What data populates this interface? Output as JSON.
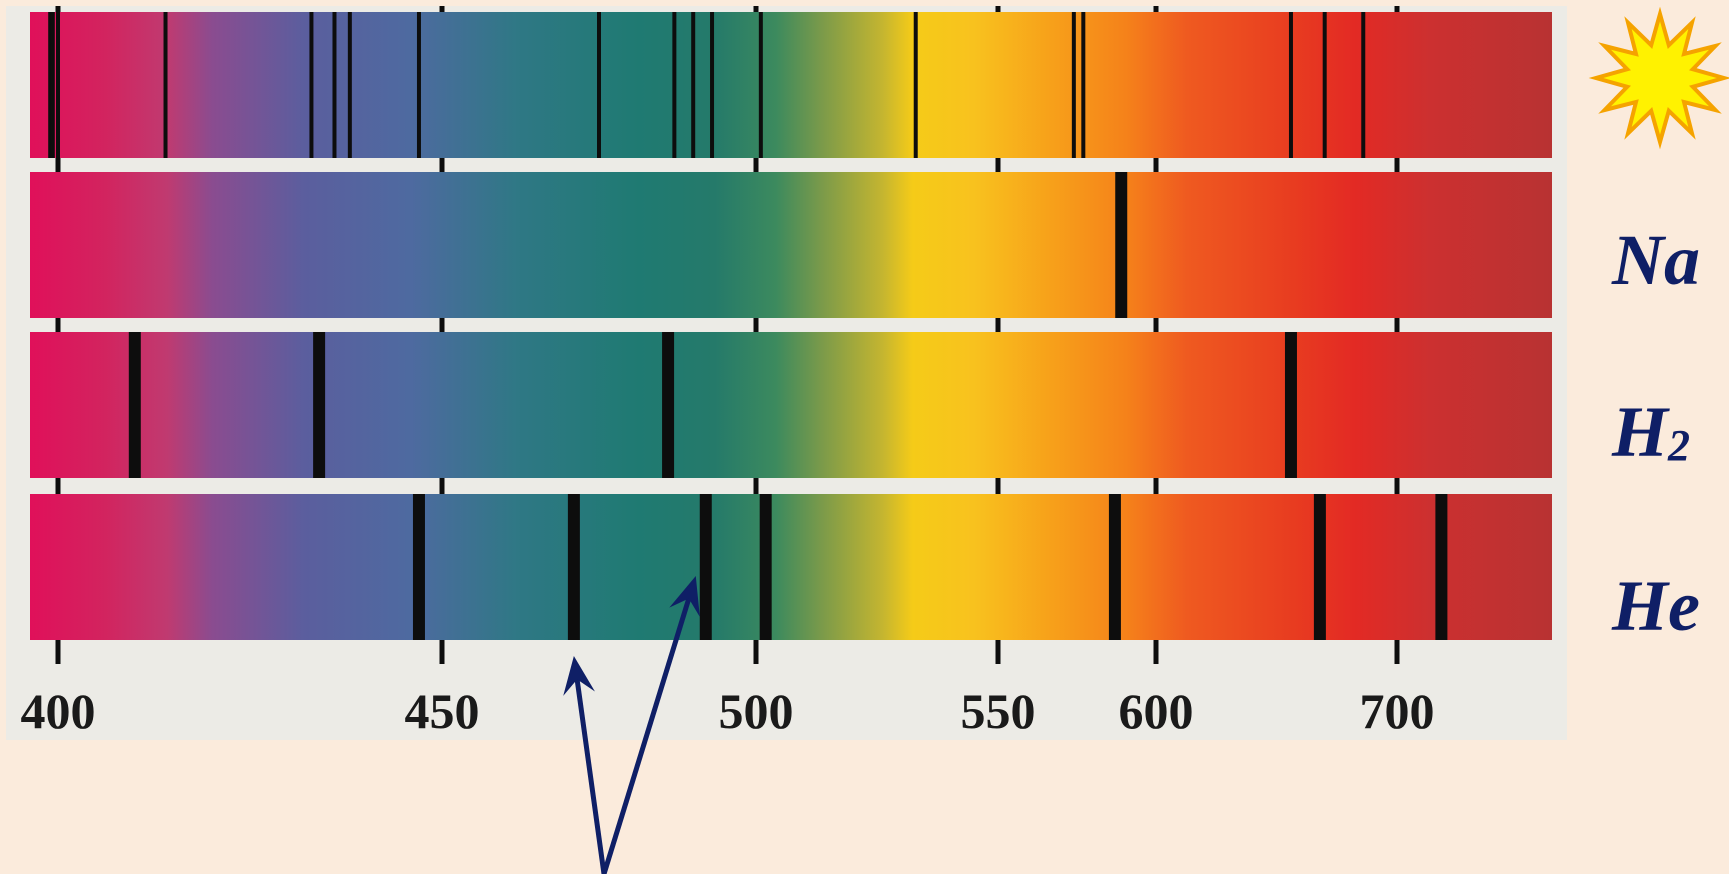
{
  "colors": {
    "background": "#fbebdc",
    "panel": "#ecebe6",
    "line": "#0d0d0d",
    "label": "#0f1f66",
    "arrow": "#0f1f66",
    "sun_fill": "#fff200",
    "sun_stroke": "#f5a300"
  },
  "wavelength_axis": {
    "ticks": [
      {
        "value": 400,
        "label": "400"
      },
      {
        "value": 450,
        "label": "450"
      },
      {
        "value": 500,
        "label": "500"
      },
      {
        "value": 550,
        "label": "550"
      },
      {
        "value": 600,
        "label": "600"
      },
      {
        "value": 700,
        "label": "700"
      }
    ]
  },
  "spectra": [
    {
      "id": "sun",
      "label": "",
      "icon": "sun-icon",
      "lines": [
        397,
        398,
        400,
        414,
        433,
        436,
        438,
        447,
        475,
        487,
        490,
        493,
        501,
        533,
        574,
        577,
        656,
        670,
        686
      ]
    },
    {
      "id": "sodium",
      "label": "Na",
      "icon": "",
      "lines": [
        589
      ]
    },
    {
      "id": "hydrogen",
      "label": "H",
      "subscript": "2",
      "icon": "",
      "lines": [
        410,
        434,
        486,
        656
      ]
    },
    {
      "id": "helium",
      "label": "He",
      "icon": "",
      "lines": [
        447,
        471,
        492,
        502,
        587,
        668,
        706
      ]
    }
  ],
  "arrows": {
    "points_to": [
      471,
      492
    ]
  }
}
